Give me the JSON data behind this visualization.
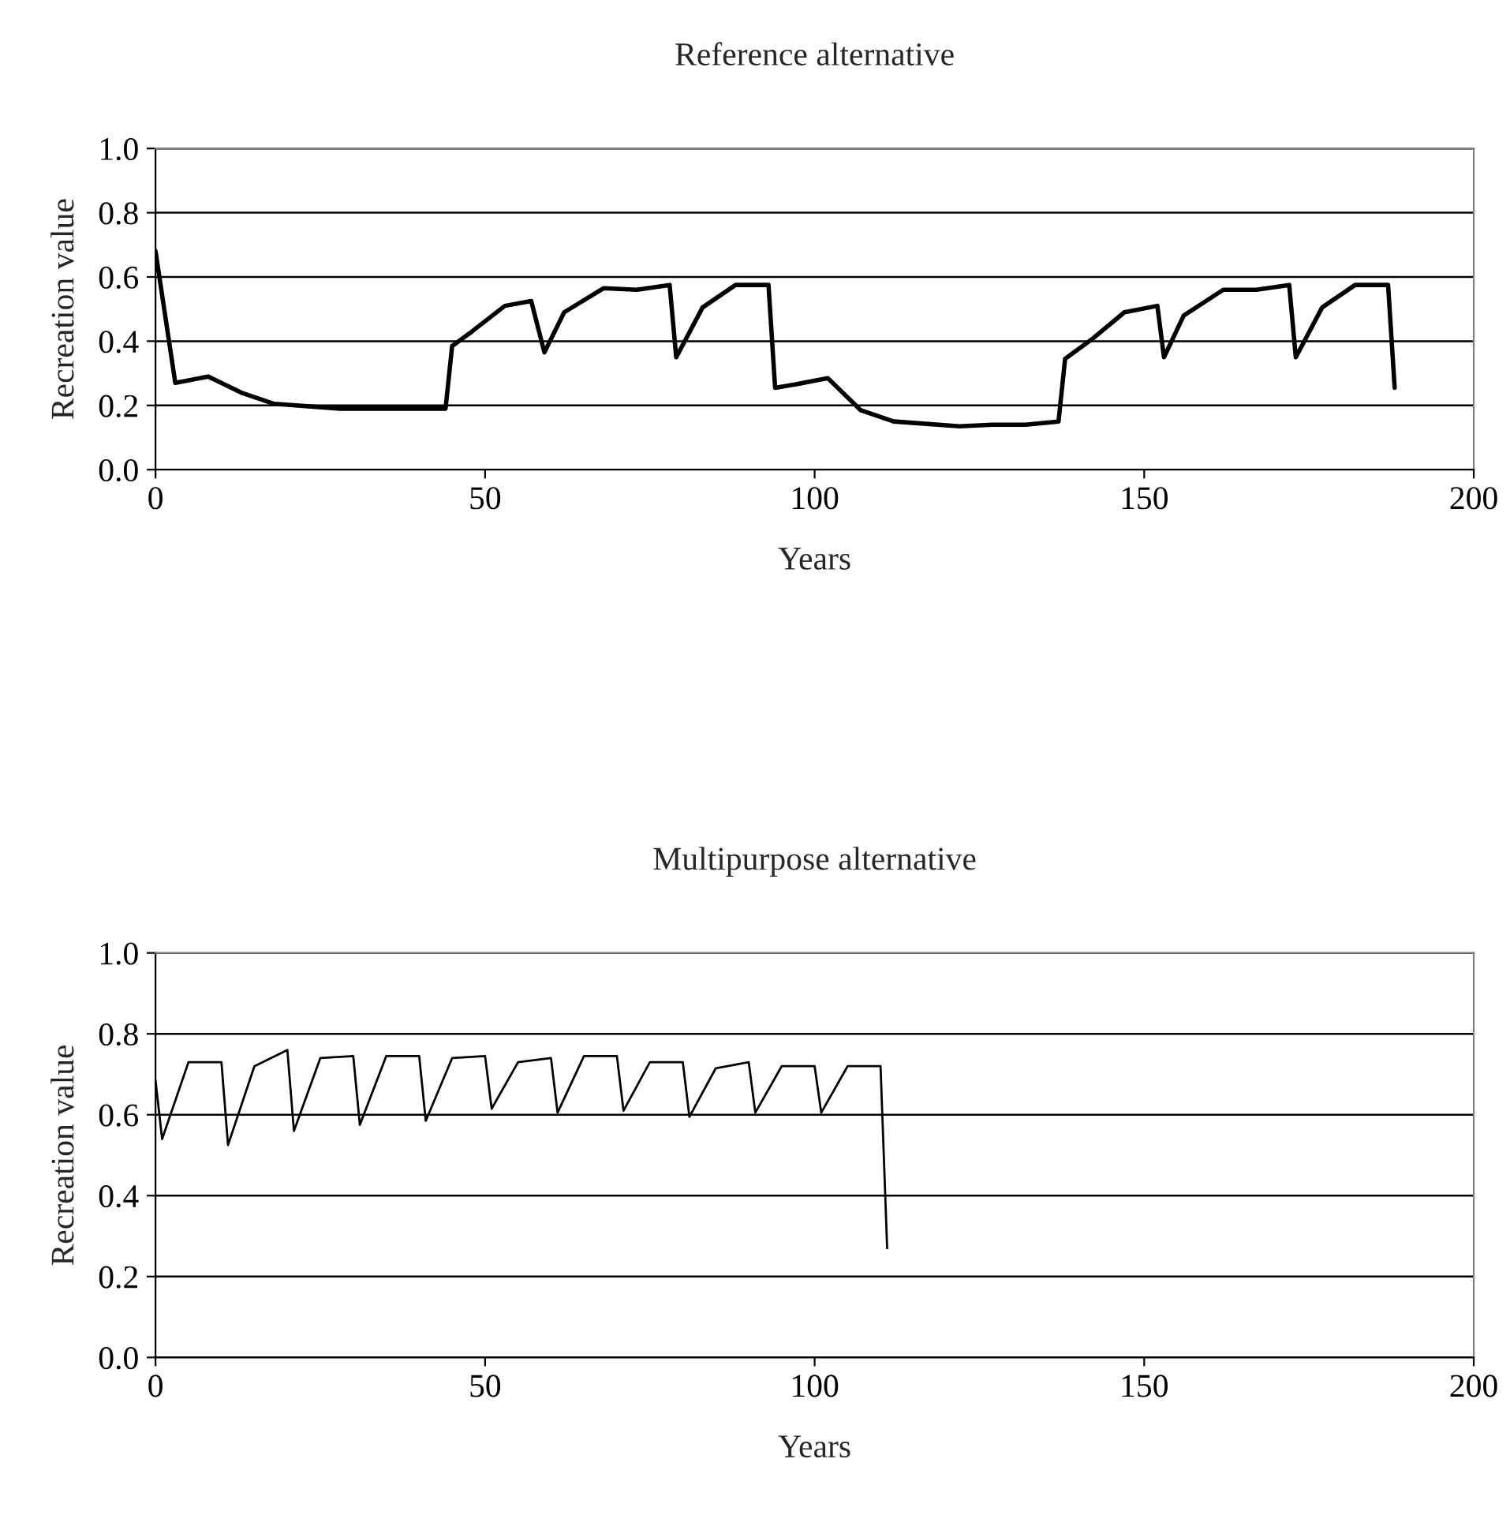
{
  "chart_data": [
    {
      "type": "line",
      "title": "Reference alternative",
      "xlabel": "Years",
      "ylabel": "Recreation value",
      "xlim": [
        0,
        200
      ],
      "xticks": [
        0,
        50,
        100,
        150,
        200
      ],
      "ylim": [
        0,
        1
      ],
      "yticks": [
        {
          "value": 0,
          "label": "0.0"
        },
        {
          "value": 0.2,
          "label": "0.2"
        },
        {
          "value": 0.4,
          "label": "0.4"
        },
        {
          "value": 0.6,
          "label": "0.6"
        },
        {
          "value": 0.8,
          "label": "0.8"
        },
        {
          "value": 1,
          "label": "1.0"
        }
      ],
      "grid": "y",
      "legend": false,
      "series": [
        {
          "color": "#000000",
          "x": [
            0,
            3,
            8,
            13,
            18,
            28,
            44,
            45,
            48,
            53,
            57,
            59,
            62,
            68,
            73,
            78,
            79,
            83,
            88,
            93,
            94,
            97,
            102,
            107,
            112,
            122,
            127,
            132,
            137,
            138,
            142,
            147,
            152,
            153,
            156,
            162,
            167,
            172,
            173,
            177,
            182,
            187,
            188
          ],
          "values": [
            0.68,
            0.27,
            0.29,
            0.24,
            0.205,
            0.19,
            0.19,
            0.385,
            0.43,
            0.51,
            0.525,
            0.365,
            0.49,
            0.565,
            0.56,
            0.575,
            0.35,
            0.505,
            0.575,
            0.575,
            0.255,
            0.265,
            0.285,
            0.185,
            0.15,
            0.135,
            0.14,
            0.14,
            0.15,
            0.345,
            0.405,
            0.49,
            0.51,
            0.35,
            0.48,
            0.56,
            0.56,
            0.575,
            0.35,
            0.505,
            0.575,
            0.575,
            0.255
          ]
        }
      ]
    },
    {
      "type": "line",
      "title": "Multipurpose alternative",
      "xlabel": "Years",
      "ylabel": "Recreation value",
      "xlim": [
        0,
        200
      ],
      "xticks": [
        0,
        50,
        100,
        150,
        200
      ],
      "ylim": [
        0,
        1
      ],
      "yticks": [
        {
          "value": 0,
          "label": "0.0"
        },
        {
          "value": 0.2,
          "label": "0.2"
        },
        {
          "value": 0.4,
          "label": "0.4"
        },
        {
          "value": 0.6,
          "label": "0.6"
        },
        {
          "value": 0.8,
          "label": "0.8"
        },
        {
          "value": 1,
          "label": "1.0"
        }
      ],
      "grid": "y",
      "legend": false,
      "series": [
        {
          "color": "#000000",
          "x": [
            0,
            1,
            5,
            10,
            11,
            15,
            20,
            21,
            25,
            30,
            31,
            35,
            40,
            41,
            45,
            50,
            51,
            55,
            60,
            61,
            65,
            70,
            71,
            75,
            80,
            81,
            85,
            90,
            91,
            95,
            100,
            101,
            105,
            110,
            111
          ],
          "values": [
            0.685,
            0.54,
            0.73,
            0.73,
            0.525,
            0.72,
            0.76,
            0.56,
            0.74,
            0.745,
            0.575,
            0.745,
            0.745,
            0.585,
            0.74,
            0.745,
            0.615,
            0.73,
            0.74,
            0.605,
            0.745,
            0.745,
            0.61,
            0.73,
            0.73,
            0.595,
            0.715,
            0.73,
            0.605,
            0.72,
            0.72,
            0.605,
            0.72,
            0.72,
            0.27
          ]
        }
      ]
    }
  ]
}
